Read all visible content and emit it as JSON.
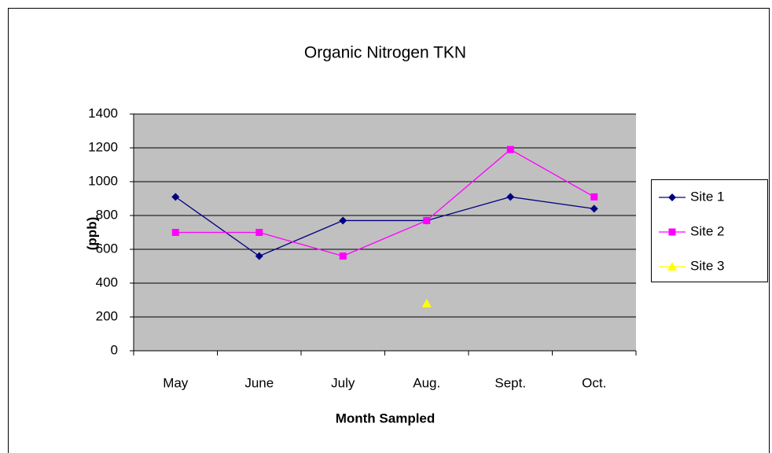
{
  "chart_data": {
    "type": "line",
    "title": "Organic Nitrogen TKN",
    "x_label": "Month Sampled",
    "y_label": "(ppb)",
    "categories": [
      "May",
      "June",
      "July",
      "Aug.",
      "Sept.",
      "Oct."
    ],
    "series": [
      {
        "name": "Site 1",
        "color": "#000080",
        "marker": "diamond",
        "values": [
          910,
          560,
          770,
          770,
          910,
          840
        ]
      },
      {
        "name": "Site 2",
        "color": "#ff00ff",
        "marker": "square",
        "values": [
          700,
          700,
          560,
          770,
          1190,
          910
        ]
      },
      {
        "name": "Site 3",
        "color": "#ffff00",
        "marker": "triangle",
        "values": [
          null,
          null,
          null,
          280,
          null,
          null
        ]
      }
    ],
    "ylim": [
      0,
      1400
    ],
    "yticks": [
      0,
      200,
      400,
      600,
      800,
      1000,
      1200,
      1400
    ],
    "grid": true,
    "legend": "right"
  }
}
